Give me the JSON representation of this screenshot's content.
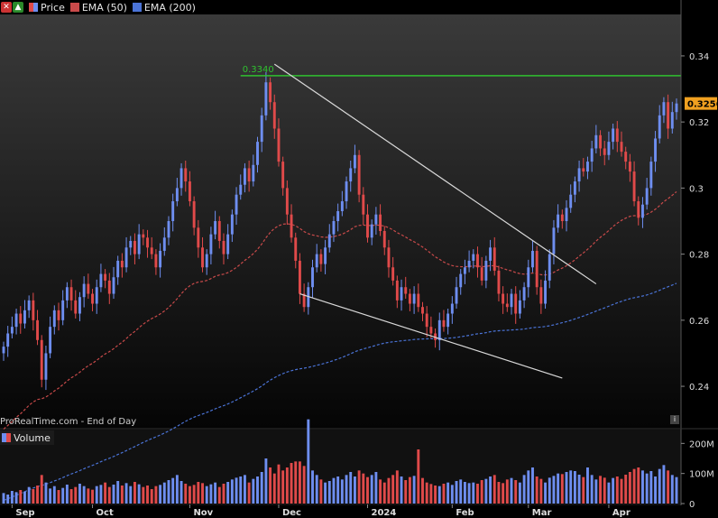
{
  "legend": {
    "price_label": "Price",
    "ema50_label": "EMA (50)",
    "ema200_label": "EMA (200)"
  },
  "volume_legend": {
    "label": "Volume"
  },
  "footer": {
    "source": "ProRealTime.com - End of Day"
  },
  "colors": {
    "background": "#000000",
    "up": "#6e8ef0",
    "down": "#e04a4a",
    "resistance": "#2fc12f",
    "trendline": "#d9d9d9",
    "ema50": "#c94a4a",
    "ema200": "#4a73d6",
    "last_price_tag": "#f0a020"
  },
  "chart_data": {
    "type": "candlestick",
    "price_axis": {
      "ticks": [
        0.24,
        0.26,
        0.28,
        0.3,
        0.32,
        0.34
      ],
      "labels": [
        "0.24",
        "0.26",
        "0.28",
        "0.3",
        "0.32",
        "0.34"
      ],
      "ylim": [
        0.228,
        0.352
      ]
    },
    "volume_axis": {
      "ticks": [
        0,
        100,
        200
      ],
      "labels": [
        "0",
        "100M",
        "200M"
      ],
      "ylim": [
        0,
        240
      ]
    },
    "x_labels": [
      "Sep",
      "Oct",
      "Nov",
      "Dec",
      "2024",
      "Feb",
      "Mar",
      "Apr"
    ],
    "x_label_index": [
      2,
      21,
      44,
      65,
      86,
      106,
      124,
      143
    ],
    "annotations": {
      "resistance": {
        "value": 0.334,
        "label": "0.3340",
        "from_index": 56,
        "to_index": 160
      },
      "last_price": {
        "value": 0.3256,
        "label": "0.3256"
      },
      "upper_trendline": {
        "from": [
          64,
          0.3375
        ],
        "to": [
          140,
          0.271
        ]
      },
      "lower_trendline": {
        "from": [
          70,
          0.268
        ],
        "to": [
          132,
          0.2425
        ]
      }
    },
    "closes": [
      0.252,
      0.256,
      0.258,
      0.262,
      0.259,
      0.263,
      0.266,
      0.26,
      0.254,
      0.242,
      0.25,
      0.258,
      0.263,
      0.26,
      0.266,
      0.27,
      0.266,
      0.262,
      0.267,
      0.271,
      0.268,
      0.265,
      0.27,
      0.274,
      0.272,
      0.268,
      0.273,
      0.278,
      0.276,
      0.282,
      0.284,
      0.28,
      0.286,
      0.285,
      0.282,
      0.28,
      0.276,
      0.281,
      0.285,
      0.29,
      0.296,
      0.3,
      0.306,
      0.302,
      0.296,
      0.288,
      0.282,
      0.276,
      0.28,
      0.286,
      0.29,
      0.284,
      0.28,
      0.286,
      0.292,
      0.298,
      0.301,
      0.306,
      0.302,
      0.307,
      0.314,
      0.322,
      0.332,
      0.326,
      0.318,
      0.308,
      0.3,
      0.292,
      0.285,
      0.278,
      0.268,
      0.264,
      0.27,
      0.276,
      0.28,
      0.277,
      0.282,
      0.286,
      0.29,
      0.293,
      0.296,
      0.302,
      0.306,
      0.31,
      0.298,
      0.292,
      0.285,
      0.289,
      0.292,
      0.287,
      0.282,
      0.276,
      0.272,
      0.266,
      0.27,
      0.268,
      0.265,
      0.268,
      0.264,
      0.262,
      0.258,
      0.256,
      0.254,
      0.26,
      0.258,
      0.262,
      0.265,
      0.27,
      0.274,
      0.276,
      0.278,
      0.28,
      0.276,
      0.272,
      0.278,
      0.282,
      0.275,
      0.268,
      0.265,
      0.264,
      0.268,
      0.262,
      0.266,
      0.27,
      0.276,
      0.281,
      0.27,
      0.265,
      0.272,
      0.28,
      0.288,
      0.292,
      0.29,
      0.294,
      0.298,
      0.302,
      0.306,
      0.305,
      0.308,
      0.312,
      0.316,
      0.312,
      0.31,
      0.314,
      0.318,
      0.314,
      0.311,
      0.308,
      0.305,
      0.296,
      0.291,
      0.295,
      0.3,
      0.308,
      0.315,
      0.322,
      0.326,
      0.318,
      0.323,
      0.3256
    ],
    "volumes": [
      35,
      30,
      42,
      38,
      45,
      40,
      55,
      48,
      60,
      95,
      70,
      50,
      58,
      45,
      52,
      63,
      48,
      55,
      66,
      58,
      50,
      46,
      58,
      62,
      70,
      55,
      63,
      75,
      60,
      68,
      58,
      72,
      64,
      55,
      60,
      48,
      58,
      62,
      70,
      78,
      85,
      95,
      75,
      66,
      58,
      62,
      72,
      68,
      58,
      64,
      70,
      55,
      66,
      72,
      80,
      86,
      90,
      95,
      70,
      82,
      90,
      105,
      150,
      120,
      100,
      130,
      110,
      120,
      135,
      140,
      140,
      125,
      280,
      110,
      95,
      80,
      70,
      75,
      85,
      90,
      80,
      95,
      105,
      90,
      110,
      100,
      88,
      95,
      105,
      80,
      70,
      85,
      95,
      110,
      90,
      78,
      88,
      92,
      180,
      85,
      70,
      65,
      60,
      58,
      66,
      70,
      62,
      75,
      80,
      72,
      68,
      70,
      66,
      78,
      82,
      90,
      95,
      72,
      68,
      80,
      85,
      78,
      70,
      95,
      110,
      120,
      90,
      82,
      70,
      86,
      92,
      100,
      98,
      105,
      110,
      108,
      96,
      88,
      120,
      95,
      80,
      92,
      86,
      70,
      85,
      90,
      82,
      96,
      105,
      115,
      120,
      110,
      100,
      108,
      90,
      115,
      128,
      110,
      95,
      88
    ]
  }
}
